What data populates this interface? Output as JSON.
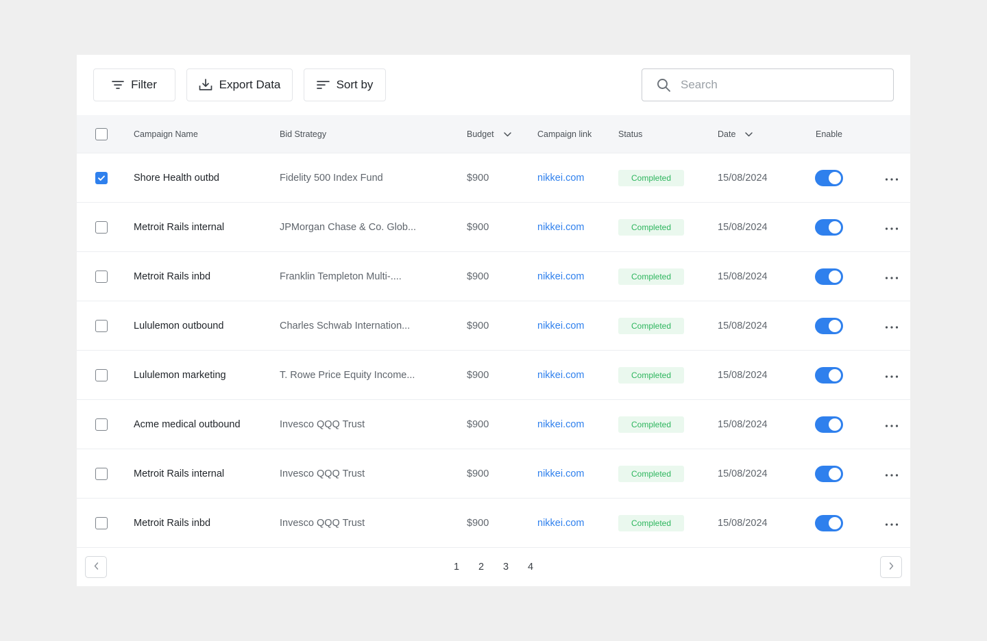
{
  "toolbar": {
    "filter_label": "Filter",
    "export_label": "Export Data",
    "sort_label": "Sort by",
    "search_placeholder": "Search",
    "search_value": ""
  },
  "table": {
    "headers": {
      "name": "Campaign Name",
      "bid": "Bid Strategy",
      "budget": "Budget",
      "link": "Campaign link",
      "status": "Status",
      "date": "Date",
      "enable": "Enable"
    },
    "rows": [
      {
        "checked": true,
        "name": "Shore Health outbd",
        "bid": "Fidelity 500 Index Fund",
        "budget": "$900",
        "link": "nikkei.com",
        "status": "Completed",
        "date": "15/08/2024",
        "enabled": true
      },
      {
        "checked": false,
        "name": "Metroit Rails internal",
        "bid": "JPMorgan Chase & Co. Glob...",
        "budget": "$900",
        "link": "nikkei.com",
        "status": "Completed",
        "date": "15/08/2024",
        "enabled": true
      },
      {
        "checked": false,
        "name": "Metroit Rails inbd",
        "bid": "Franklin Templeton Multi-....",
        "budget": "$900",
        "link": "nikkei.com",
        "status": "Completed",
        "date": "15/08/2024",
        "enabled": true
      },
      {
        "checked": false,
        "name": "Lululemon outbound",
        "bid": "Charles Schwab Internation...",
        "budget": "$900",
        "link": "nikkei.com",
        "status": "Completed",
        "date": "15/08/2024",
        "enabled": true
      },
      {
        "checked": false,
        "name": "Lululemon marketing",
        "bid": "T. Rowe Price Equity Income...",
        "budget": "$900",
        "link": "nikkei.com",
        "status": "Completed",
        "date": "15/08/2024",
        "enabled": true
      },
      {
        "checked": false,
        "name": "Acme medical outbound",
        "bid": "Invesco QQQ Trust",
        "budget": "$900",
        "link": "nikkei.com",
        "status": "Completed",
        "date": "15/08/2024",
        "enabled": true
      },
      {
        "checked": false,
        "name": "Metroit Rails internal",
        "bid": "Invesco QQQ Trust",
        "budget": "$900",
        "link": "nikkei.com",
        "status": "Completed",
        "date": "15/08/2024",
        "enabled": true
      },
      {
        "checked": false,
        "name": "Metroit Rails inbd",
        "bid": "Invesco QQQ Trust",
        "budget": "$900",
        "link": "nikkei.com",
        "status": "Completed",
        "date": "15/08/2024",
        "enabled": true
      }
    ]
  },
  "pagination": {
    "pages": [
      "1",
      "2",
      "3",
      "4"
    ]
  },
  "colors": {
    "accent": "#2f80ed",
    "status_bg": "#eaf8ee",
    "status_text": "#2db55d"
  },
  "icons": {
    "filter": "filter-icon",
    "export": "download-icon",
    "sort": "sort-icon",
    "search": "search-icon",
    "more": "more-horizontal-icon",
    "prev": "chevron-left-icon",
    "next": "chevron-right-icon"
  }
}
